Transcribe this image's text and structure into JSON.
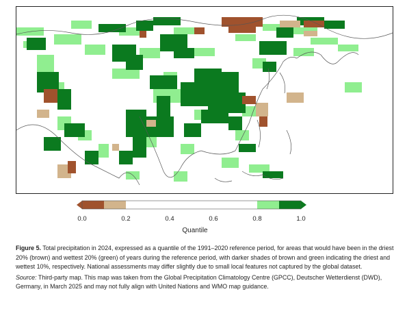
{
  "map": {
    "name": "precipitation-quantile-map-asia-2024",
    "colors": {
      "land_normal": "#ffffff",
      "coast": "#555555",
      "driest10": "#a0522d",
      "driest20": "#d2b48c",
      "wettest20": "#90ee90",
      "wettest10": "#0b7a1f"
    }
  },
  "legend": {
    "ticks": [
      "0.0",
      "0.2",
      "0.4",
      "0.6",
      "0.8",
      "1.0"
    ],
    "title": "Quantile",
    "segments": [
      {
        "from": 0.0,
        "to": 0.1,
        "color": "#a0522d"
      },
      {
        "from": 0.1,
        "to": 0.2,
        "color": "#d2b48c"
      },
      {
        "from": 0.2,
        "to": 0.8,
        "color": "#ffffff"
      },
      {
        "from": 0.8,
        "to": 0.9,
        "color": "#90ee90"
      },
      {
        "from": 0.9,
        "to": 1.0,
        "color": "#0b7a1f"
      }
    ]
  },
  "caption": {
    "label": "Figure 5.",
    "text": " Total precipitation in 2024, expressed as a quantile of the 1991–2020 reference period, for areas that would have been in the driest 20% (brown) and wettest 20% (green) of years during the reference period, with darker shades of brown and green indicating the driest and wettest 10%, respectively. National assessments may differ slightly due to small local features not captured by the global dataset.",
    "source_label": "Source:",
    "source_text": " Third-party map. This map was taken from the Global Precipitation Climatology Centre (GPCC), Deutscher Wetterdienst (DWD), Germany, in March 2025 and may not fully align with United Nations and WMO map guidance."
  }
}
